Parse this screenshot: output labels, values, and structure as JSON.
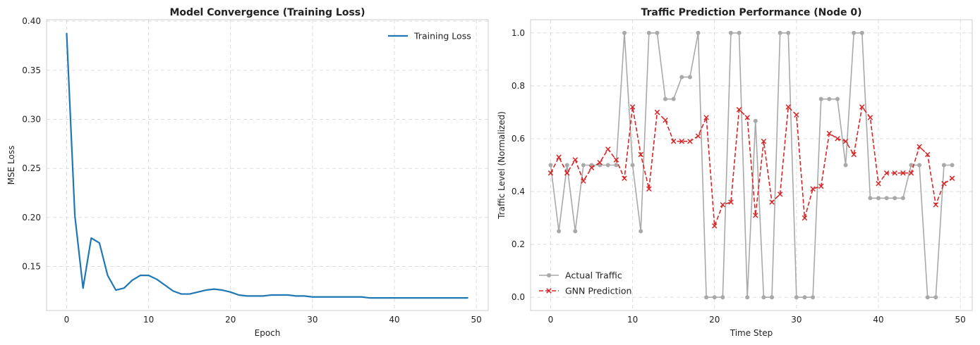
{
  "chart_data": [
    {
      "type": "line",
      "title": "Model Convergence (Training Loss)",
      "xlabel": "Epoch",
      "ylabel": "MSE Loss",
      "xlim": [
        -2.45,
        51.45
      ],
      "ylim": [
        0.1052,
        0.4015
      ],
      "xticks": [
        0,
        10,
        20,
        30,
        40,
        50
      ],
      "yticks": [
        0.15,
        0.2,
        0.25,
        0.3,
        0.35,
        0.4
      ],
      "ytick_format": 2,
      "grid": true,
      "legend": "upper-right",
      "series": [
        {
          "name": "Training Loss",
          "color": "#1f77b4",
          "style": "solid",
          "marker": "none",
          "x": [
            0,
            1,
            2,
            3,
            4,
            5,
            6,
            7,
            8,
            9,
            10,
            11,
            12,
            13,
            14,
            15,
            16,
            17,
            18,
            19,
            20,
            21,
            22,
            23,
            24,
            25,
            26,
            27,
            28,
            29,
            30,
            31,
            32,
            33,
            34,
            35,
            36,
            37,
            38,
            39,
            40,
            41,
            42,
            43,
            44,
            45,
            46,
            47,
            48,
            49
          ],
          "y": [
            0.388,
            0.202,
            0.128,
            0.179,
            0.174,
            0.141,
            0.126,
            0.128,
            0.136,
            0.141,
            0.141,
            0.137,
            0.131,
            0.125,
            0.122,
            0.122,
            0.124,
            0.126,
            0.127,
            0.126,
            0.124,
            0.121,
            0.12,
            0.12,
            0.12,
            0.121,
            0.121,
            0.121,
            0.12,
            0.12,
            0.119,
            0.119,
            0.119,
            0.119,
            0.119,
            0.119,
            0.119,
            0.118,
            0.118,
            0.118,
            0.118,
            0.118,
            0.118,
            0.118,
            0.118,
            0.118,
            0.118,
            0.118,
            0.118,
            0.118
          ]
        }
      ]
    },
    {
      "type": "line",
      "title": "Traffic Prediction Performance (Node 0)",
      "xlabel": "Time Step",
      "ylabel": "Traffic Level (Normalized)",
      "xlim": [
        -2.45,
        51.45
      ],
      "ylim": [
        -0.05,
        1.05
      ],
      "xticks": [
        0,
        10,
        20,
        30,
        40,
        50
      ],
      "yticks": [
        0.0,
        0.2,
        0.4,
        0.6,
        0.8,
        1.0
      ],
      "ytick_format": 1,
      "grid": true,
      "legend": "lower-left",
      "series": [
        {
          "name": "Actual Traffic",
          "color": "#a9a9a9",
          "style": "solid",
          "marker": "circle",
          "x": [
            0,
            1,
            2,
            3,
            4,
            5,
            6,
            7,
            8,
            9,
            10,
            11,
            12,
            13,
            14,
            15,
            16,
            17,
            18,
            19,
            20,
            21,
            22,
            23,
            24,
            25,
            26,
            27,
            28,
            29,
            30,
            31,
            32,
            33,
            34,
            35,
            36,
            37,
            38,
            39,
            40,
            41,
            42,
            43,
            44,
            45,
            46,
            47,
            48,
            49
          ],
          "y": [
            0.5,
            0.25,
            0.5,
            0.25,
            0.5,
            0.5,
            0.5,
            0.5,
            0.5,
            1.0,
            0.5,
            0.25,
            1.0,
            1.0,
            0.75,
            0.75,
            0.833,
            0.833,
            1.0,
            0.0,
            0.0,
            0.0,
            1.0,
            1.0,
            0.0,
            0.667,
            0.0,
            0.0,
            1.0,
            1.0,
            0.0,
            0.0,
            0.0,
            0.75,
            0.75,
            0.75,
            0.5,
            1.0,
            1.0,
            0.375,
            0.375,
            0.375,
            0.375,
            0.375,
            0.5,
            0.5,
            0.0,
            0.0,
            0.5,
            0.5
          ]
        },
        {
          "name": "GNN Prediction",
          "color": "#d62728",
          "style": "dashed",
          "marker": "x",
          "x": [
            0,
            1,
            2,
            3,
            4,
            5,
            6,
            7,
            8,
            9,
            10,
            11,
            12,
            13,
            14,
            15,
            16,
            17,
            18,
            19,
            20,
            21,
            22,
            23,
            24,
            25,
            26,
            27,
            28,
            29,
            30,
            31,
            32,
            33,
            34,
            35,
            36,
            37,
            38,
            39,
            40,
            41,
            42,
            43,
            44,
            45,
            46,
            47,
            48,
            49
          ],
          "y": [
            0.47,
            0.53,
            0.47,
            0.52,
            0.44,
            0.49,
            0.51,
            0.56,
            0.52,
            0.45,
            0.72,
            0.54,
            0.41,
            0.7,
            0.67,
            0.59,
            0.59,
            0.59,
            0.61,
            0.68,
            0.27,
            0.35,
            0.36,
            0.71,
            0.68,
            0.31,
            0.59,
            0.36,
            0.39,
            0.72,
            0.69,
            0.3,
            0.41,
            0.42,
            0.62,
            0.6,
            0.59,
            0.54,
            0.72,
            0.68,
            0.43,
            0.47,
            0.47,
            0.47,
            0.47,
            0.57,
            0.54,
            0.35,
            0.43,
            0.45
          ]
        }
      ]
    }
  ]
}
